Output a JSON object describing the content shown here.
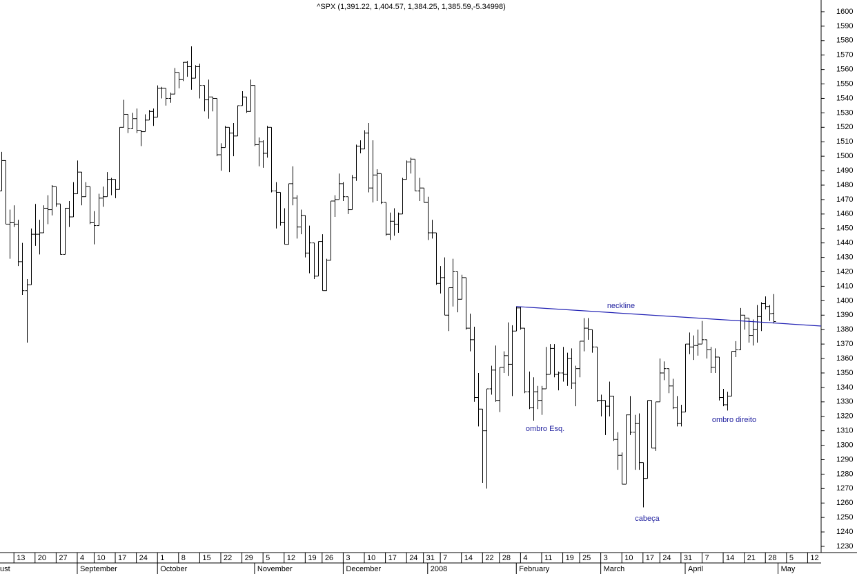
{
  "chart_data": {
    "type": "ohlc",
    "title": "^SPX (1,391.22, 1,404.57, 1,384.25, 1,385.59,-5.34998)",
    "color": "#000000",
    "open": [
      1476,
      1497,
      1453,
      1454,
      1453,
      1427,
      1407,
      1411,
      1446,
      1446,
      1447,
      1464,
      1463,
      1479,
      1467,
      1432,
      1464,
      1458,
      1474,
      1489,
      1472,
      1479,
      1454,
      1452,
      1471,
      1472,
      1484,
      1484,
      1477,
      1520,
      1529,
      1519,
      1526,
      1518,
      1517,
      1525,
      1531,
      1527,
      1547,
      1547,
      1540,
      1543,
      1558,
      1553,
      1565,
      1562,
      1554,
      1562,
      1549,
      1539,
      1541,
      1540,
      1501,
      1506,
      1520,
      1516,
      1514,
      1535,
      1541,
      1531,
      1549,
      1508,
      1510,
      1502,
      1520,
      1476,
      1475,
      1454,
      1439,
      1481,
      1471,
      1451,
      1459,
      1433,
      1440,
      1417,
      1441,
      1407,
      1428,
      1469,
      1470,
      1481,
      1472,
      1463,
      1485,
      1507,
      1505,
      1516,
      1478,
      1487,
      1488,
      1468,
      1446,
      1455,
      1453,
      1460,
      1484,
      1496,
      1498,
      1476,
      1478,
      1468,
      1447,
      1447,
      1412,
      1416,
      1390,
      1409,
      1420,
      1401,
      1416,
      1381,
      1373,
      1333,
      1325,
      1310,
      1339,
      1352,
      1331,
      1354,
      1362,
      1356,
      1379,
      1395,
      1381,
      1337,
      1326,
      1337,
      1331,
      1339,
      1349,
      1367,
      1349,
      1350,
      1349,
      1360,
      1343,
      1353,
      1372,
      1381,
      1380,
      1368,
      1331,
      1331,
      1327,
      1334,
      1304,
      1293,
      1273,
      1321,
      1309,
      1315,
      1288,
      1277,
      1331,
      1298,
      1330,
      1350,
      1353,
      1341,
      1326,
      1315,
      1323,
      1370,
      1368,
      1369,
      1370,
      1373,
      1366,
      1354,
      1361,
      1333,
      1328,
      1334,
      1365,
      1366,
      1390,
      1388,
      1376,
      1380,
      1389,
      1398,
      1396,
      1391.22
    ],
    "high": [
      1503,
      1497,
      1463,
      1466,
      1456,
      1440,
      1415,
      1450,
      1467,
      1456,
      1466,
      1473,
      1480,
      1479,
      1467,
      1464,
      1469,
      1482,
      1497,
      1489,
      1482,
      1479,
      1462,
      1474,
      1479,
      1489,
      1485,
      1484,
      1520,
      1539,
      1529,
      1530,
      1533,
      1518,
      1529,
      1532,
      1533,
      1549,
      1548,
      1547,
      1544,
      1561,
      1558,
      1565,
      1566,
      1576,
      1563,
      1564,
      1549,
      1553,
      1541,
      1540,
      1509,
      1521,
      1520,
      1523,
      1535,
      1545,
      1541,
      1553,
      1549,
      1513,
      1511,
      1521,
      1520,
      1482,
      1475,
      1464,
      1481,
      1493,
      1473,
      1463,
      1459,
      1452,
      1440,
      1441,
      1446,
      1429,
      1469,
      1473,
      1488,
      1482,
      1472,
      1487,
      1508,
      1511,
      1518,
      1523,
      1511,
      1491,
      1488,
      1468,
      1461,
      1464,
      1461,
      1485,
      1497,
      1499,
      1498,
      1485,
      1478,
      1472,
      1456,
      1447,
      1424,
      1430,
      1409,
      1429,
      1420,
      1418,
      1416,
      1391,
      1382,
      1350,
      1325,
      1339,
      1355,
      1369,
      1354,
      1365,
      1385,
      1383,
      1396,
      1396,
      1381,
      1351,
      1347,
      1341,
      1341,
      1368,
      1370,
      1370,
      1351,
      1368,
      1364,
      1367,
      1355,
      1372,
      1388,
      1388,
      1380,
      1368,
      1335,
      1331,
      1344,
      1334,
      1309,
      1295,
      1321,
      1334,
      1321,
      1322,
      1288,
      1331,
      1331,
      1330,
      1360,
      1358,
      1353,
      1346,
      1334,
      1328,
      1370,
      1378,
      1376,
      1380,
      1386,
      1373,
      1368,
      1367,
      1361,
      1339,
      1337,
      1365,
      1372,
      1395,
      1390,
      1388,
      1387,
      1397,
      1399,
      1403,
      1397,
      1404.57
    ],
    "low": [
      1476,
      1453,
      1429,
      1451,
      1424,
      1404,
      1371,
      1411,
      1438,
      1432,
      1447,
      1453,
      1459,
      1465,
      1432,
      1432,
      1451,
      1458,
      1474,
      1466,
      1472,
      1453,
      1439,
      1452,
      1465,
      1472,
      1473,
      1471,
      1477,
      1520,
      1516,
      1519,
      1516,
      1507,
      1517,
      1525,
      1521,
      1527,
      1540,
      1535,
      1537,
      1543,
      1547,
      1552,
      1555,
      1546,
      1554,
      1540,
      1531,
      1526,
      1531,
      1500,
      1490,
      1506,
      1489,
      1500,
      1514,
      1535,
      1530,
      1531,
      1507,
      1493,
      1492,
      1499,
      1475,
      1450,
      1452,
      1439,
      1439,
      1466,
      1443,
      1446,
      1430,
      1419,
      1415,
      1417,
      1407,
      1407,
      1428,
      1458,
      1470,
      1469,
      1460,
      1463,
      1483,
      1502,
      1505,
      1475,
      1468,
      1469,
      1467,
      1445,
      1442,
      1445,
      1447,
      1460,
      1484,
      1488,
      1476,
      1469,
      1468,
      1442,
      1443,
      1411,
      1405,
      1390,
      1379,
      1396,
      1392,
      1401,
      1380,
      1365,
      1330,
      1313,
      1274,
      1270,
      1335,
      1330,
      1323,
      1350,
      1348,
      1334,
      1379,
      1380,
      1336,
      1325,
      1317,
      1325,
      1321,
      1339,
      1349,
      1347,
      1338,
      1344,
      1341,
      1339,
      1327,
      1347,
      1365,
      1373,
      1364,
      1330,
      1320,
      1307,
      1320,
      1303,
      1283,
      1273,
      1273,
      1307,
      1283,
      1283,
      1257,
      1277,
      1298,
      1296,
      1330,
      1345,
      1336,
      1325,
      1313,
      1313,
      1323,
      1363,
      1359,
      1362,
      1370,
      1360,
      1350,
      1350,
      1331,
      1327,
      1324,
      1334,
      1361,
      1366,
      1380,
      1371,
      1369,
      1371,
      1379,
      1394,
      1386,
      1384.25
    ],
    "close": [
      1497,
      1453,
      1454,
      1453,
      1427,
      1407,
      1411,
      1446,
      1446,
      1447,
      1464,
      1463,
      1479,
      1467,
      1432,
      1464,
      1458,
      1474,
      1489,
      1472,
      1479,
      1454,
      1452,
      1471,
      1472,
      1484,
      1484,
      1477,
      1520,
      1529,
      1519,
      1526,
      1518,
      1517,
      1525,
      1531,
      1527,
      1547,
      1547,
      1540,
      1543,
      1558,
      1553,
      1565,
      1562,
      1554,
      1562,
      1549,
      1539,
      1541,
      1540,
      1501,
      1506,
      1520,
      1516,
      1514,
      1535,
      1541,
      1531,
      1549,
      1508,
      1510,
      1502,
      1520,
      1476,
      1475,
      1454,
      1439,
      1481,
      1471,
      1451,
      1459,
      1433,
      1440,
      1417,
      1441,
      1407,
      1428,
      1469,
      1470,
      1481,
      1472,
      1463,
      1485,
      1507,
      1505,
      1516,
      1478,
      1487,
      1488,
      1468,
      1446,
      1455,
      1453,
      1460,
      1484,
      1496,
      1498,
      1476,
      1478,
      1468,
      1447,
      1447,
      1412,
      1416,
      1390,
      1409,
      1420,
      1401,
      1416,
      1381,
      1373,
      1333,
      1325,
      1310,
      1339,
      1352,
      1331,
      1354,
      1362,
      1356,
      1379,
      1395,
      1381,
      1337,
      1326,
      1337,
      1331,
      1339,
      1349,
      1367,
      1349,
      1350,
      1349,
      1360,
      1343,
      1353,
      1372,
      1381,
      1380,
      1368,
      1331,
      1331,
      1327,
      1334,
      1304,
      1293,
      1273,
      1321,
      1309,
      1315,
      1288,
      1277,
      1331,
      1298,
      1330,
      1350,
      1353,
      1341,
      1326,
      1315,
      1323,
      1370,
      1368,
      1369,
      1370,
      1373,
      1366,
      1354,
      1361,
      1333,
      1328,
      1334,
      1365,
      1366,
      1390,
      1388,
      1376,
      1380,
      1389,
      1398,
      1396,
      1391,
      1385.59
    ],
    "xlim": [
      -0.3,
      194.2
    ],
    "xticks": [
      {
        "value": 3,
        "label": "13"
      },
      {
        "value": 8,
        "label": "20"
      },
      {
        "value": 13,
        "label": "27"
      },
      {
        "value": 18,
        "label": "4"
      },
      {
        "value": 22,
        "label": "10"
      },
      {
        "value": 27,
        "label": "17"
      },
      {
        "value": 32,
        "label": "24"
      },
      {
        "value": 37,
        "label": "1"
      },
      {
        "value": 42,
        "label": "8"
      },
      {
        "value": 47,
        "label": "15"
      },
      {
        "value": 52,
        "label": "22"
      },
      {
        "value": 57,
        "label": "29"
      },
      {
        "value": 62,
        "label": "5"
      },
      {
        "value": 67,
        "label": "12"
      },
      {
        "value": 72,
        "label": "19"
      },
      {
        "value": 76,
        "label": "26"
      },
      {
        "value": 81,
        "label": "3"
      },
      {
        "value": 86,
        "label": "10"
      },
      {
        "value": 91,
        "label": "17"
      },
      {
        "value": 96,
        "label": "24"
      },
      {
        "value": 100,
        "label": "31"
      },
      {
        "value": 104,
        "label": "7"
      },
      {
        "value": 109,
        "label": "14"
      },
      {
        "value": 114,
        "label": "22"
      },
      {
        "value": 118,
        "label": "28"
      },
      {
        "value": 123,
        "label": "4"
      },
      {
        "value": 128,
        "label": "11"
      },
      {
        "value": 133,
        "label": "19"
      },
      {
        "value": 137,
        "label": "25"
      },
      {
        "value": 142,
        "label": "3"
      },
      {
        "value": 147,
        "label": "10"
      },
      {
        "value": 152,
        "label": "17"
      },
      {
        "value": 156,
        "label": "24"
      },
      {
        "value": 161,
        "label": "31"
      },
      {
        "value": 166,
        "label": "7"
      },
      {
        "value": 171,
        "label": "14"
      },
      {
        "value": 176,
        "label": "21"
      },
      {
        "value": 181,
        "label": "28"
      },
      {
        "value": 186,
        "label": "5"
      },
      {
        "value": 191,
        "label": "12"
      }
    ],
    "month_ticks": [
      {
        "value": -5,
        "label": "ust"
      },
      {
        "value": 18,
        "label": "September"
      },
      {
        "value": 37,
        "label": "October"
      },
      {
        "value": 60,
        "label": "November"
      },
      {
        "value": 81,
        "label": "December"
      },
      {
        "value": 101,
        "label": "2008"
      },
      {
        "value": 122,
        "label": "February"
      },
      {
        "value": 142,
        "label": "March"
      },
      {
        "value": 162,
        "label": "April"
      },
      {
        "value": 184,
        "label": "May"
      }
    ],
    "ylim": [
      1225.7,
      1608.1
    ],
    "yticks": [
      1230,
      1240,
      1250,
      1260,
      1270,
      1280,
      1290,
      1300,
      1310,
      1320,
      1330,
      1340,
      1350,
      1360,
      1370,
      1380,
      1390,
      1400,
      1410,
      1420,
      1430,
      1440,
      1450,
      1460,
      1470,
      1480,
      1490,
      1500,
      1510,
      1520,
      1530,
      1540,
      1550,
      1560,
      1570,
      1580,
      1590,
      1600
    ],
    "neckline": {
      "x": [
        122,
        194.2
      ],
      "y": [
        1396,
        1382.5
      ],
      "color": "#2323b4"
    },
    "annotation_color": "#2323a0",
    "annotations": [
      "neckline",
      "ombro Esq.",
      "cabeça",
      "ombro direito"
    ]
  }
}
